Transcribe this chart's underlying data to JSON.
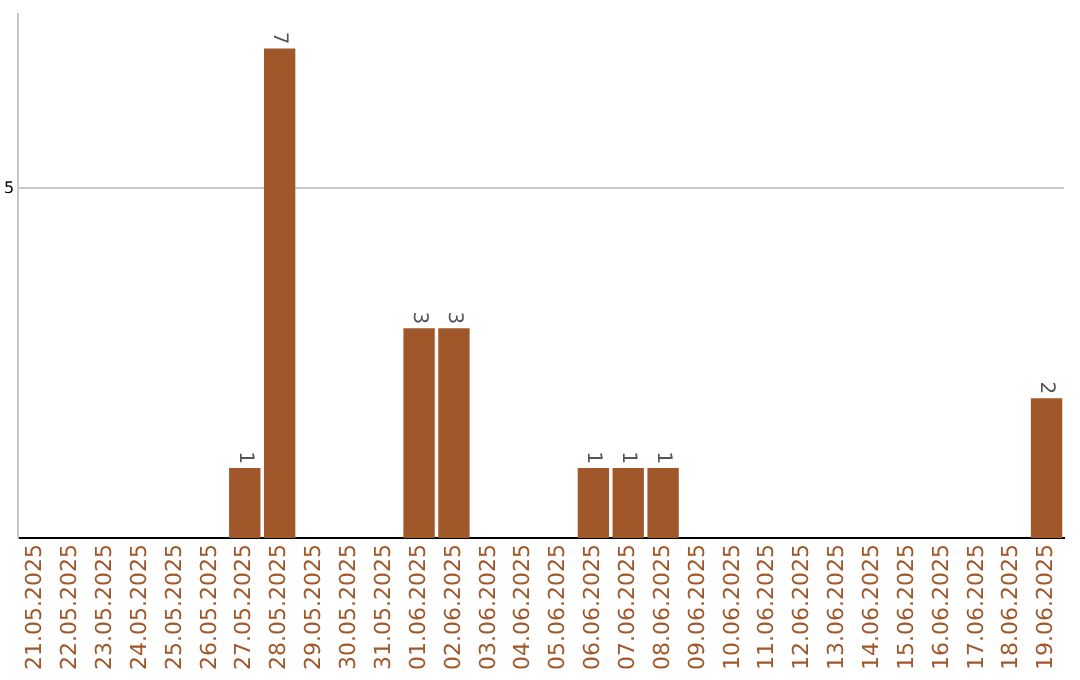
{
  "chart_data": {
    "type": "bar",
    "categories": [
      "21.05.2025",
      "22.05.2025",
      "23.05.2025",
      "24.05.2025",
      "25.05.2025",
      "26.05.2025",
      "27.05.2025",
      "28.05.2025",
      "29.05.2025",
      "30.05.2025",
      "31.05.2025",
      "01.06.2025",
      "02.06.2025",
      "03.06.2025",
      "04.06.2025",
      "05.06.2025",
      "06.06.2025",
      "07.06.2025",
      "08.06.2025",
      "09.06.2025",
      "10.06.2025",
      "11.06.2025",
      "12.06.2025",
      "13.06.2025",
      "14.06.2025",
      "15.06.2025",
      "16.06.2025",
      "17.06.2025",
      "18.06.2025",
      "19.06.2025"
    ],
    "values": [
      0,
      0,
      0,
      0,
      0,
      0,
      1,
      7,
      0,
      0,
      0,
      3,
      3,
      0,
      0,
      0,
      1,
      1,
      1,
      0,
      0,
      0,
      0,
      0,
      0,
      0,
      0,
      0,
      0,
      2
    ],
    "value_labels": [
      null,
      null,
      null,
      null,
      null,
      null,
      "1",
      "7",
      null,
      null,
      null,
      "3",
      "3",
      null,
      null,
      null,
      "1",
      "1",
      "1",
      null,
      null,
      null,
      null,
      null,
      null,
      null,
      null,
      null,
      null,
      "2"
    ],
    "color": "#a0582a",
    "ylim": [
      0,
      7.5
    ],
    "yticks": [
      5
    ],
    "grid": "y",
    "legend": false
  }
}
